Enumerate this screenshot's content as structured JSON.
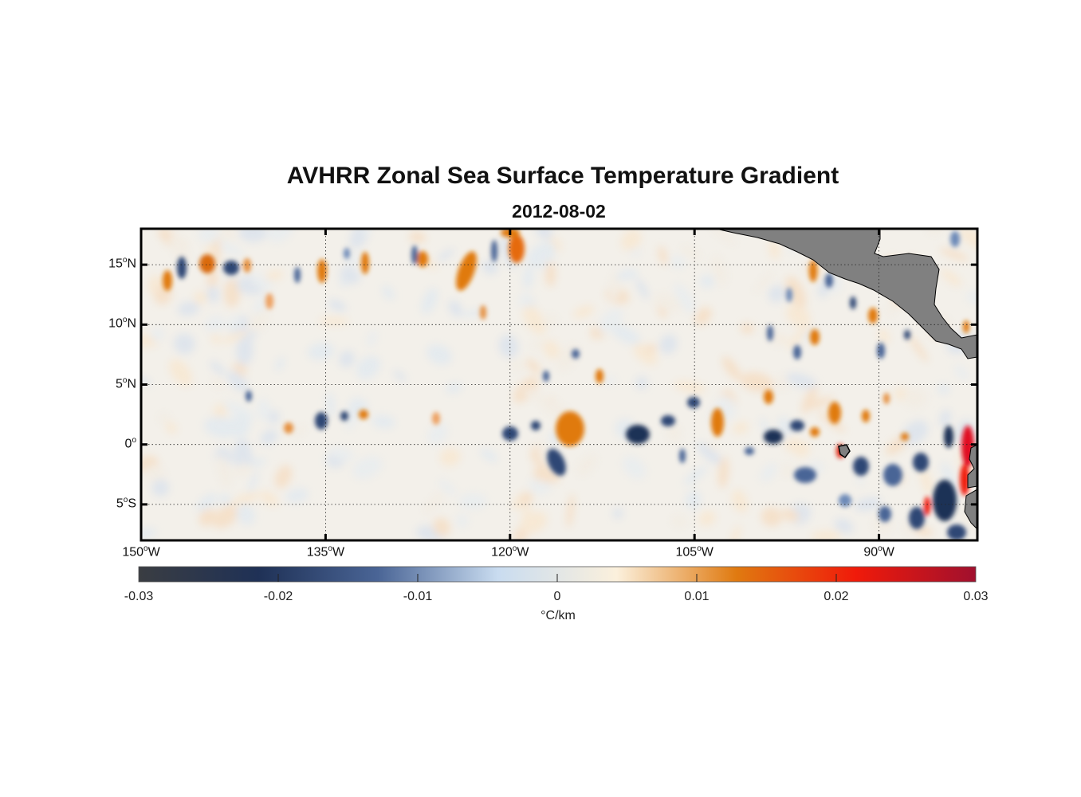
{
  "title": "AVHRR Zonal Sea Surface Temperature Gradient",
  "subtitle": "2012-08-02",
  "map": {
    "projection": "equirectangular",
    "lon_range": [
      -150,
      -82
    ],
    "lat_range": [
      -8,
      18
    ],
    "grid": "dotted",
    "land_color": "#808080",
    "lat_ticks": [
      {
        "value": 15,
        "deg": "15",
        "hemi": "N"
      },
      {
        "value": 10,
        "deg": "10",
        "hemi": "N"
      },
      {
        "value": 5,
        "deg": "5",
        "hemi": "N"
      },
      {
        "value": 0,
        "deg": "0",
        "hemi": ""
      },
      {
        "value": -5,
        "deg": "5",
        "hemi": "S"
      }
    ],
    "lon_ticks": [
      {
        "value": -150,
        "deg": "150",
        "hemi": "W"
      },
      {
        "value": -135,
        "deg": "135",
        "hemi": "W"
      },
      {
        "value": -120,
        "deg": "120",
        "hemi": "W"
      },
      {
        "value": -105,
        "deg": "105",
        "hemi": "W"
      },
      {
        "value": -90,
        "deg": "90",
        "hemi": "W"
      }
    ]
  },
  "colorbar": {
    "min": -0.03,
    "max": 0.03,
    "units": "°C/km",
    "ticks": [
      "-0.03",
      "-0.02",
      "-0.01",
      "0",
      "0.01",
      "0.02",
      "0.03"
    ],
    "stops": [
      "#3a3d42",
      "#1f3156",
      "#4a6596",
      "#c9dcf0",
      "#fbf0dc",
      "#e07a10",
      "#f01a0a",
      "#a0102e"
    ]
  }
}
